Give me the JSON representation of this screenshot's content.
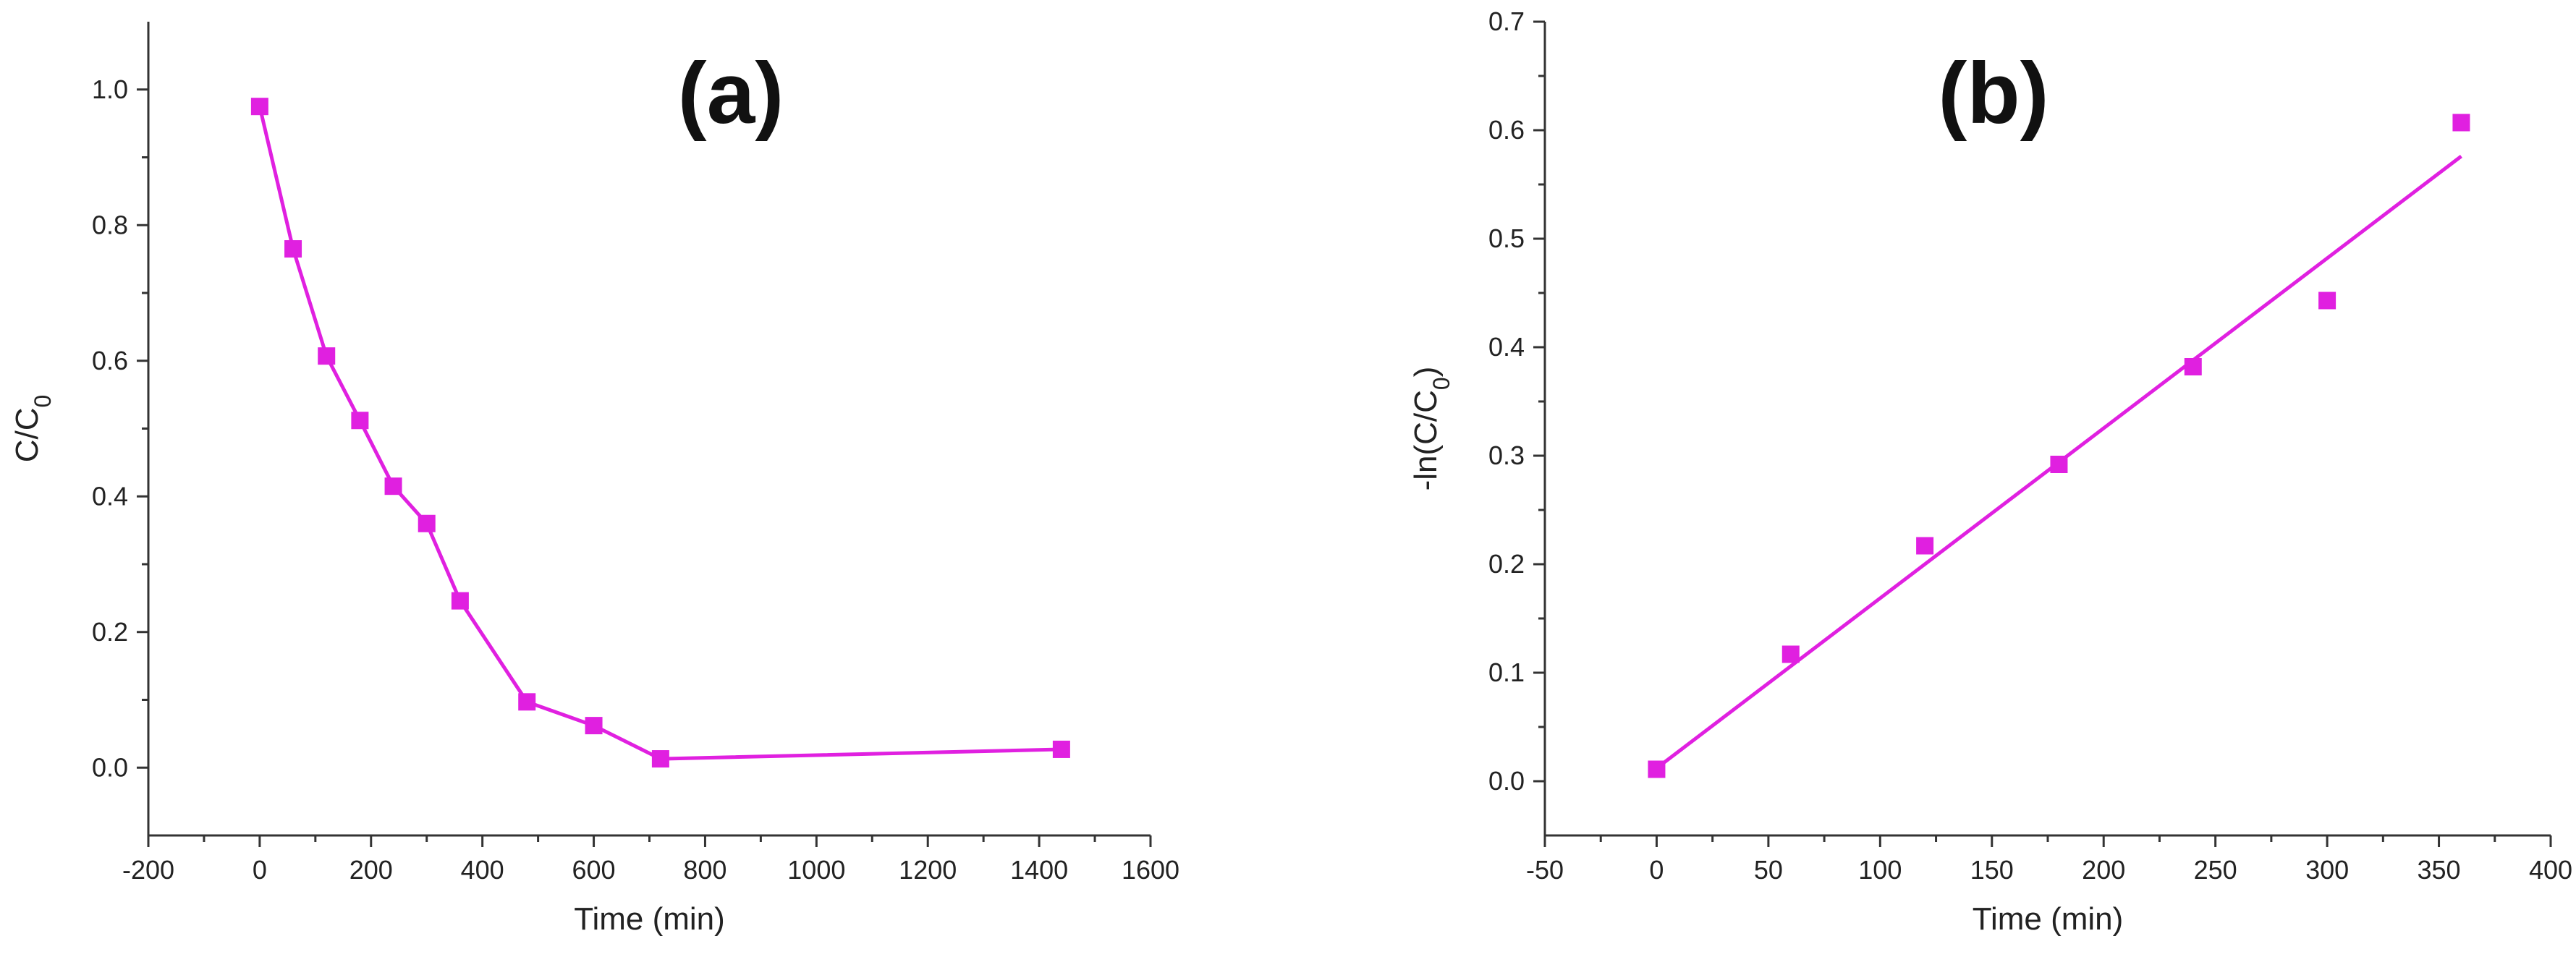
{
  "colors": {
    "series": "#E020E0",
    "axis": "#333333"
  },
  "chart_data": [
    {
      "panel_label": "(a)",
      "type": "line",
      "marker": "square",
      "xlabel": "Time (min)",
      "ylabel_main": "C/C",
      "ylabel_sub": "0",
      "xlim": [
        -200,
        1600
      ],
      "ylim": [
        -0.1,
        1.1
      ],
      "xticks": [
        -200,
        0,
        200,
        400,
        600,
        800,
        1000,
        1200,
        1400,
        1600
      ],
      "xtick_labels": [
        "-200",
        "0",
        "200",
        "400",
        "600",
        "800",
        "1000",
        "1200",
        "1400",
        "1600"
      ],
      "yticks": [
        0.0,
        0.2,
        0.4,
        0.6,
        0.8,
        1.0
      ],
      "ytick_labels": [
        "0.0",
        "0.2",
        "0.4",
        "0.6",
        "0.8",
        "1.0"
      ],
      "series": [
        {
          "x": [
            0,
            60,
            120,
            180,
            240,
            300,
            360,
            480,
            600,
            720,
            1440
          ],
          "y": [
            0.975,
            0.765,
            0.607,
            0.512,
            0.415,
            0.36,
            0.246,
            0.097,
            0.062,
            0.013,
            0.027
          ]
        }
      ]
    },
    {
      "panel_label": "(b)",
      "type": "scatter",
      "marker": "square",
      "xlabel": "Time (min)",
      "ylabel_main": "-ln(C/C",
      "ylabel_sub": "0",
      "ylabel_tail": ")",
      "xlim": [
        -50,
        400
      ],
      "ylim": [
        -0.05,
        0.7
      ],
      "xticks": [
        -50,
        0,
        50,
        100,
        150,
        200,
        250,
        300,
        350,
        400
      ],
      "xtick_labels": [
        "-50",
        "0",
        "50",
        "100",
        "150",
        "200",
        "250",
        "300",
        "350",
        "400"
      ],
      "yticks": [
        0.0,
        0.1,
        0.2,
        0.3,
        0.4,
        0.5,
        0.6,
        0.7
      ],
      "ytick_labels": [
        "0.0",
        "0.1",
        "0.2",
        "0.3",
        "0.4",
        "0.5",
        "0.6",
        "0.7"
      ],
      "series": [
        {
          "x": [
            0,
            60,
            120,
            180,
            240,
            300,
            360
          ],
          "y": [
            0.011,
            0.117,
            0.217,
            0.292,
            0.382,
            0.443,
            0.607
          ]
        }
      ],
      "fit_line": {
        "x": [
          0,
          360
        ],
        "y": [
          0.012,
          0.576
        ]
      }
    }
  ]
}
